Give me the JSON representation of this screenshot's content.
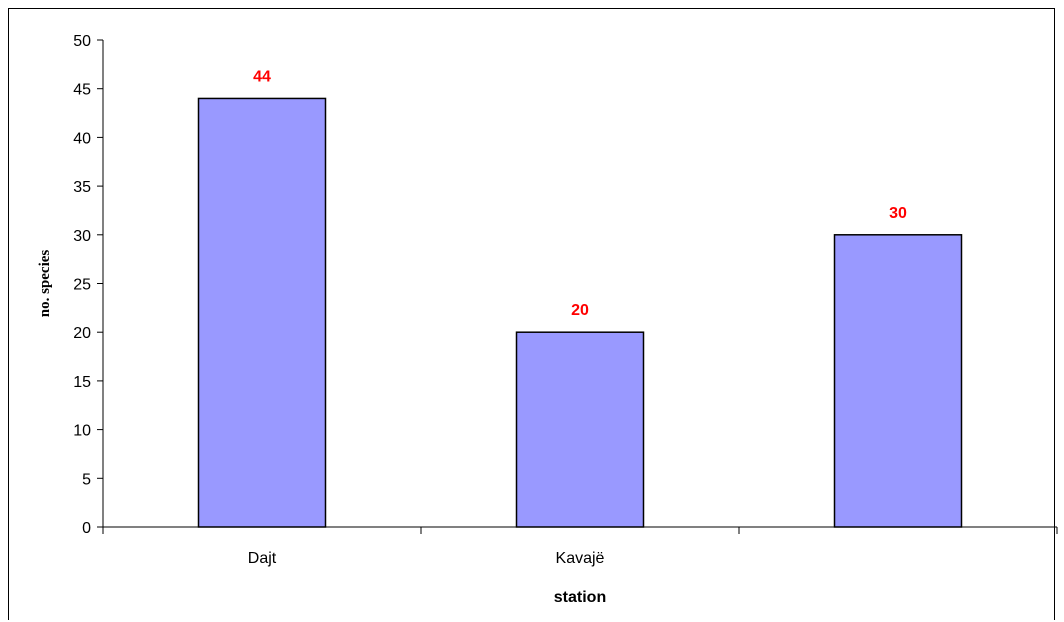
{
  "chart_data": {
    "type": "bar",
    "categories": [
      "Dajt",
      "Kavajë",
      ""
    ],
    "values": [
      44,
      20,
      30
    ],
    "title": "",
    "xlabel": "station",
    "ylabel": "no. species",
    "ylim": [
      0,
      50
    ],
    "yticks": [
      0,
      5,
      10,
      15,
      20,
      25,
      30,
      35,
      40,
      45,
      50
    ],
    "grid": false,
    "legend": "none",
    "colors": {
      "bar_fill": "#9999ff",
      "bar_stroke": "#000000",
      "data_label": "#ff0000",
      "axis": "#000000"
    }
  }
}
